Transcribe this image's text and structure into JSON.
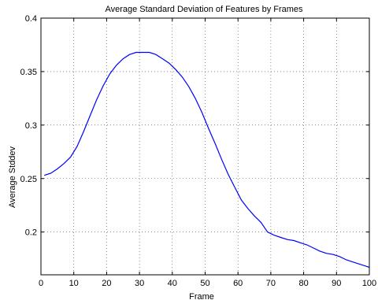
{
  "chart_data": {
    "type": "line",
    "title": "Average Standard Deviation of Features by Frames",
    "xlabel": "Frame",
    "ylabel": "Average Stddev",
    "xlim": [
      0,
      100
    ],
    "ylim": [
      0.16,
      0.4
    ],
    "xticks": [
      0,
      10,
      20,
      30,
      40,
      50,
      60,
      70,
      80,
      90,
      100
    ],
    "yticks": [
      0.2,
      0.25,
      0.3,
      0.35,
      0.4
    ],
    "xtick_labels": [
      "0",
      "10",
      "20",
      "30",
      "40",
      "50",
      "60",
      "70",
      "80",
      "90",
      "100"
    ],
    "ytick_labels": [
      "0.2",
      "0.25",
      "0.3",
      "0.35",
      "0.4"
    ],
    "grid": true,
    "series": [
      {
        "color": "#0000ff",
        "x": [
          1,
          3,
          5,
          7,
          9,
          11,
          13,
          15,
          17,
          19,
          21,
          23,
          25,
          27,
          29,
          31,
          33,
          35,
          37,
          39,
          41,
          43,
          45,
          47,
          49,
          51,
          53,
          55,
          57,
          59,
          61,
          63,
          65,
          67,
          69,
          71,
          73,
          75,
          77,
          79,
          81,
          83,
          85,
          87,
          89,
          91,
          93,
          95,
          97,
          99,
          100
        ],
        "y": [
          0.253,
          0.255,
          0.259,
          0.264,
          0.27,
          0.28,
          0.294,
          0.309,
          0.324,
          0.337,
          0.348,
          0.356,
          0.362,
          0.366,
          0.368,
          0.368,
          0.368,
          0.366,
          0.362,
          0.358,
          0.352,
          0.345,
          0.336,
          0.325,
          0.312,
          0.297,
          0.283,
          0.268,
          0.254,
          0.242,
          0.23,
          0.222,
          0.215,
          0.209,
          0.2,
          0.197,
          0.195,
          0.193,
          0.192,
          0.19,
          0.188,
          0.185,
          0.182,
          0.18,
          0.179,
          0.177,
          0.174,
          0.172,
          0.17,
          0.168,
          0.167
        ]
      }
    ]
  }
}
